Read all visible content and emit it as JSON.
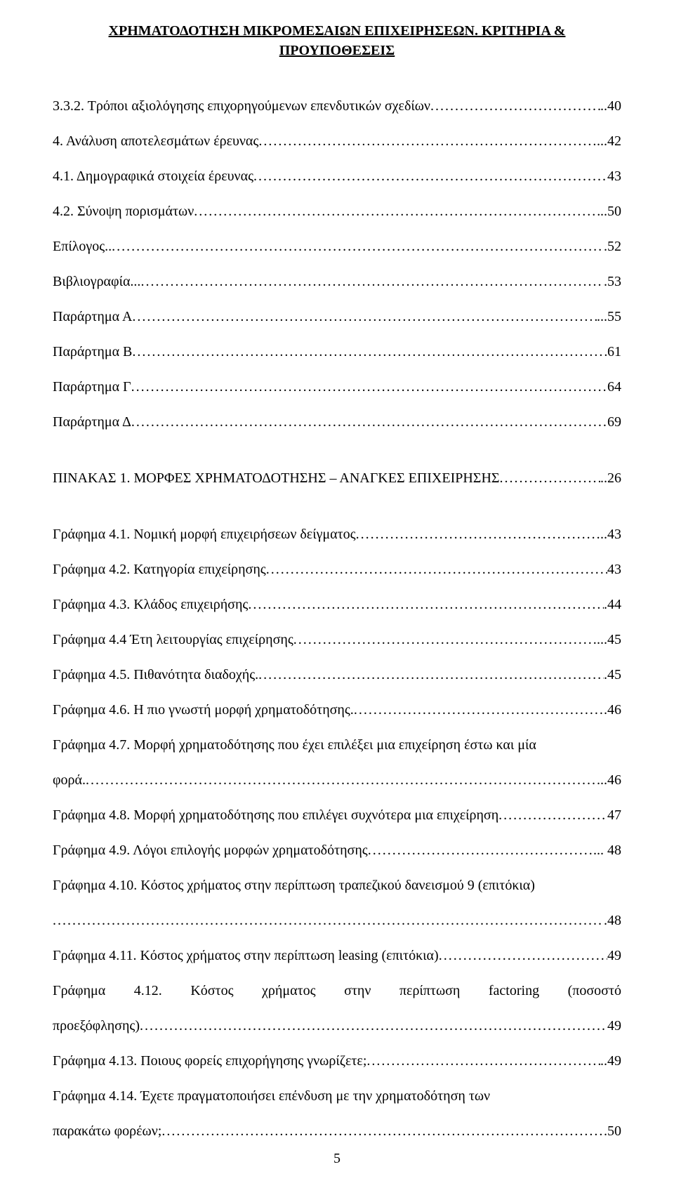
{
  "header": "ΧΡΗΜΑΤΟΔΟΤΗΣΗ ΜΙΚΡΟΜΕΣΑΙΩΝ ΕΠΙΧΕΙΡΗΣΕΩΝ. ΚΡΙΤΗΡΙΑ & ΠΡΟΥΠΟΘΕΣΕΙΣ",
  "toc_section1": [
    {
      "text": "3.3.2. Τρόποι αξιολόγησης επιχορηγούμενων επενδυτικών σχεδίων",
      "page": "..40"
    },
    {
      "text": "4. Ανάλυση αποτελεσμάτων έρευνας",
      "page": "...42"
    },
    {
      "text": "4.1. Δημογραφικά στοιχεία έρευνας",
      "page": "43"
    },
    {
      "text": "4.2. Σύνοψη πορισμάτων",
      "page": "..50"
    },
    {
      "text": "Επίλογος..",
      "page": ".52"
    },
    {
      "text": "Βιβλιογραφία...",
      "page": ".53"
    },
    {
      "text": "Παράρτημα Α",
      "page": "...55"
    },
    {
      "text": "Παράρτημα Β",
      "page": "61"
    },
    {
      "text": "Παράρτημα Γ",
      "page": "64"
    },
    {
      "text": "Παράρτημα Δ",
      "page": "69"
    }
  ],
  "pinakas": {
    "text": "ΠΙΝΑΚΑΣ 1. ΜΟΡΦΕΣ ΧΡΗΜΑΤΟΔΟΤΗΣΗΣ – ΑΝΑΓΚΕΣ ΕΠΙΧΕΙΡΗΣΗΣ",
    "page": "..26"
  },
  "graphs": [
    {
      "text": "Γράφημα 4.1. Νομική μορφή επιχειρήσεων δείγματος",
      "page": "..43"
    },
    {
      "text": "Γράφημα 4.2. Κατηγορία επιχείρησης",
      "page": "43"
    },
    {
      "text": "Γράφημα 4.3. Κλάδος επιχειρήσης",
      "page": ".44"
    },
    {
      "text": "Γράφημα 4.4 Έτη λειτουργίας επιχείρησης",
      "page": "...45"
    },
    {
      "text": "Γράφημα 4.5. Πιθανότητα διαδοχής.",
      "page": ".45"
    },
    {
      "text": "Γράφημα 4.6. Η πιο γνωστή μορφή χρηματοδότησης.",
      "page": ".46"
    }
  ],
  "graph47": {
    "line1": "Γράφημα 4.7. Μορφή χρηματοδότησης που έχει επιλέξει μια επιχείρηση έστω και μία",
    "line2": "φορά.",
    "page": "...46"
  },
  "graphs2": [
    {
      "text": "Γράφημα 4.8. Μορφή χρηματοδότησης που επιλέγει συχνότερα μια επιχείρηση",
      "page": "47"
    },
    {
      "text": "Γράφημα 4.9. Λόγοι επιλογής μορφών χρηματοδότησης",
      "page": "... 48"
    }
  ],
  "graph410": {
    "line1": "Γράφημα 4.10. Κόστος χρήματος στην περίπτωση τραπεζικού δανεισμού 9 (επιτόκια)",
    "page": ".48"
  },
  "graph411": {
    "text": "Γράφημα 4.11. Κόστος χρήματος στην  περίπτωση leasing (επιτόκια)",
    "page": "49"
  },
  "graph412": {
    "words": [
      "Γράφημα",
      "4.12.",
      "Κόστος",
      "χρήματος",
      "στην",
      "περίπτωση",
      "factoring",
      "(ποσοστό"
    ],
    "line2": "προεξόφλησης)",
    "page": "49"
  },
  "graphs3": [
    {
      "text": "Γράφημα 4.13. Ποιους φορείς επιχορήγησης γνωρίζετε;",
      "page": "..49"
    }
  ],
  "graph414": {
    "line1": "Γράφημα 4.14. Έχετε πραγματοποιήσει επένδυση με την χρηματοδότηση των",
    "line2": "παρακάτω φορέων;",
    "page": ".50"
  },
  "page_number": "5"
}
